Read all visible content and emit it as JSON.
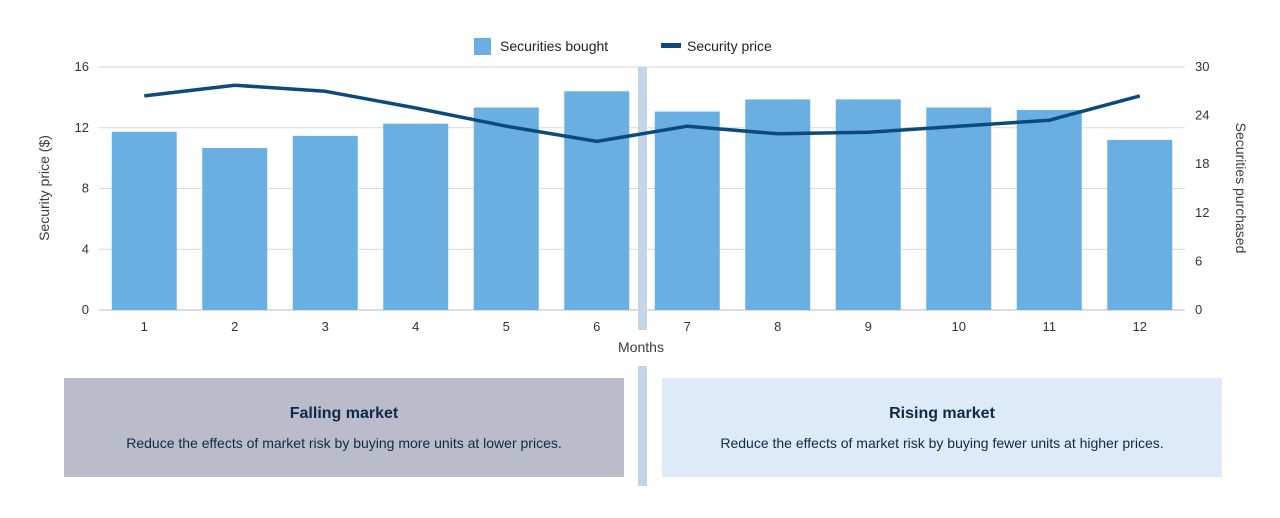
{
  "chart_data": {
    "type": "bar+line",
    "categories": [
      "1",
      "2",
      "3",
      "4",
      "5",
      "6",
      "7",
      "8",
      "9",
      "10",
      "11",
      "12"
    ],
    "series": [
      {
        "name": "Securities bought",
        "type": "bar",
        "axis": "right",
        "values": [
          22,
          20,
          21.5,
          23,
          25,
          27,
          24.5,
          26,
          26,
          25,
          24.7,
          21
        ],
        "color": "#6aafe2"
      },
      {
        "name": "Security price",
        "type": "line",
        "axis": "left",
        "values": [
          14.1,
          14.8,
          14.4,
          13.3,
          12.1,
          11.1,
          12.1,
          11.6,
          11.7,
          12.1,
          12.5,
          14.1
        ],
        "color": "#0c4a7e"
      }
    ],
    "xlabel": "Months",
    "ylabel_left": "Security price ($)",
    "ylabel_right": "Securities purchased",
    "ylim_left": [
      0,
      16
    ],
    "yticks_left": [
      "0",
      "4",
      "8",
      "12",
      "16"
    ],
    "ylim_right": [
      0,
      30
    ],
    "yticks_right": [
      "0",
      "6",
      "12",
      "18",
      "24",
      "30"
    ],
    "legend_position": "top-center",
    "grid": true
  },
  "panels": {
    "falling": {
      "title": "Falling market",
      "description": "Reduce the effects of market risk by buying more units at lower prices."
    },
    "rising": {
      "title": "Rising market",
      "description": "Reduce the effects of market risk by buying fewer units at higher prices."
    }
  },
  "colors": {
    "bar": "#6aafe2",
    "line": "#0c4a7e",
    "grid": "#d9d9d9",
    "divider": "#c5d5e6",
    "falling_bg": "#bbbccb",
    "rising_bg": "#ddeaf7"
  }
}
